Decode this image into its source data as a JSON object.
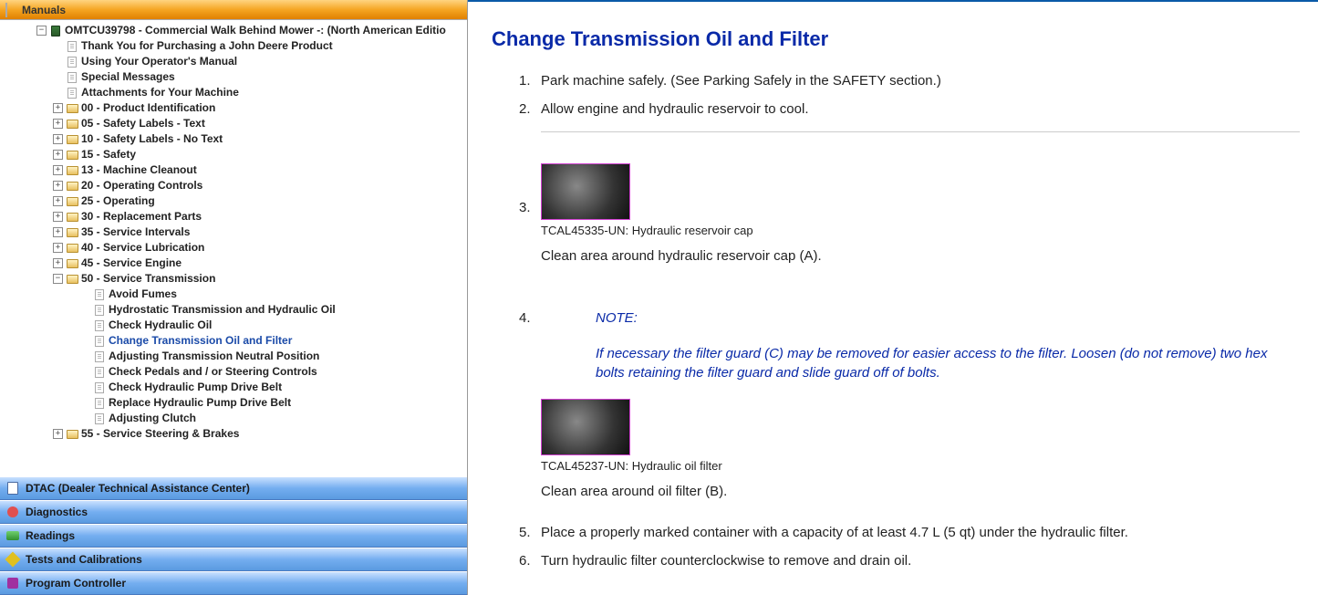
{
  "header": {
    "title": "Manuals"
  },
  "tree": {
    "root_label": "OMTCU39798 - Commercial Walk Behind Mower -: (North American Editio",
    "pages": [
      "Thank You for Purchasing a John Deere Product",
      "Using Your Operator's Manual",
      "Special Messages",
      "Attachments for Your Machine"
    ],
    "sections": [
      "00 - Product Identification",
      "05 - Safety Labels - Text",
      "10 - Safety Labels - No Text",
      "15 - Safety",
      "13 - Machine Cleanout",
      "20 - Operating Controls",
      "25 - Operating",
      "30 - Replacement Parts",
      "35 - Service Intervals",
      "40 - Service Lubrication",
      "45 - Service Engine"
    ],
    "open_section": "50 - Service Transmission",
    "open_children": [
      "Avoid Fumes",
      "Hydrostatic Transmission and Hydraulic Oil",
      "Check Hydraulic Oil",
      "Change Transmission Oil and Filter",
      "Adjusting Transmission Neutral Position",
      "Check Pedals and / or Steering Controls",
      "Check Hydraulic Pump Drive Belt",
      "Replace Hydraulic Pump Drive Belt",
      "Adjusting Clutch"
    ],
    "after_sections": [
      "55 - Service Steering & Brakes"
    ]
  },
  "nav": [
    "DTAC (Dealer Technical Assistance Center)",
    "Diagnostics",
    "Readings",
    "Tests and Calibrations",
    "Program Controller"
  ],
  "content": {
    "title": "Change Transmission Oil and Filter",
    "step1_num": "1.",
    "step1_text": "Park machine safely. (See Parking Safely in the SAFETY section.)",
    "step2_num": "2.",
    "step2_text": "Allow engine and hydraulic reservoir to cool.",
    "step3_num": "3.",
    "fig1_caption": "TCAL45335-UN: Hydraulic reservoir cap",
    "step3_text": "Clean area around hydraulic reservoir cap (A).",
    "step4_num": "4.",
    "note_label": "NOTE:",
    "note_text": "If necessary the filter guard (C) may be removed for easier access to the filter. Loosen (do not remove) two hex bolts retaining the filter guard and slide guard off of bolts.",
    "fig2_caption": "TCAL45237-UN: Hydraulic oil filter",
    "step4_text": "Clean area around oil filter (B).",
    "step5_num": "5.",
    "step5_text": "Place a properly marked container with a capacity of at least 4.7 L (5 qt) under the hydraulic filter.",
    "step6_num": "6.",
    "step6_text": "Turn hydraulic filter counterclockwise to remove and drain oil."
  }
}
